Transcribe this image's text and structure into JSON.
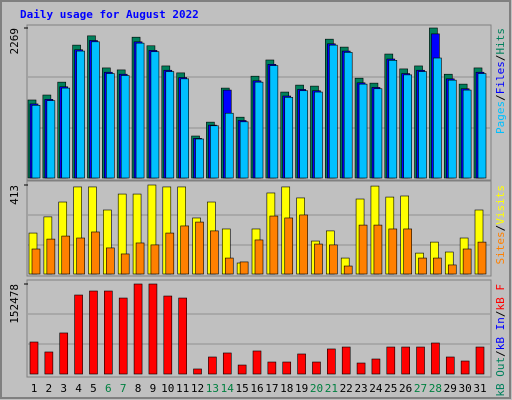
{
  "chart_data": [
    {
      "type": "bar",
      "title": "Daily usage for August 2022",
      "ylim": [
        0,
        2269
      ],
      "yticks": [
        2269
      ],
      "legend_separator": "/",
      "series": [
        {
          "name": "Hits",
          "color": "#00805c",
          "values": [
            1180,
            1255,
            1450,
            2010,
            2150,
            1665,
            1635,
            2130,
            2000,
            1695,
            1590,
            635,
            845,
            1360,
            920,
            1540,
            1785,
            1300,
            1405,
            1390,
            2100,
            1980,
            1510,
            1435,
            1875,
            1650,
            1695,
            2269,
            1570,
            1420,
            1665
          ]
        },
        {
          "name": "Files",
          "color": "#0000ff",
          "values": [
            1120,
            1190,
            1380,
            1940,
            2080,
            1600,
            1570,
            2060,
            1930,
            1630,
            1520,
            600,
            800,
            1330,
            870,
            1470,
            1720,
            1240,
            1340,
            1320,
            2030,
            1920,
            1440,
            1370,
            1800,
            1580,
            1630,
            2180,
            1500,
            1350,
            1600
          ]
        },
        {
          "name": "Pages",
          "color": "#00c0ff",
          "values": [
            1100,
            1170,
            1360,
            1920,
            2060,
            1580,
            1550,
            2040,
            1910,
            1610,
            1500,
            590,
            790,
            980,
            850,
            1450,
            1700,
            1220,
            1320,
            1300,
            2010,
            1900,
            1420,
            1350,
            1780,
            1560,
            1610,
            1815,
            1480,
            1330,
            1580
          ]
        }
      ]
    },
    {
      "type": "bar",
      "ylim": [
        0,
        413
      ],
      "yticks": [
        413
      ],
      "legend_separator": "/",
      "series": [
        {
          "name": "Visits",
          "color": "#ffff00",
          "values": [
            190,
            265,
            334,
            404,
            404,
            297,
            371,
            371,
            413,
            404,
            404,
            260,
            334,
            209,
            51,
            209,
            376,
            404,
            353,
            153,
            200,
            74,
            348,
            408,
            357,
            362,
            97,
            148,
            102,
            167,
            297
          ]
        },
        {
          "name": "Sites",
          "color": "#ff8000",
          "values": [
            116,
            162,
            176,
            167,
            195,
            121,
            93,
            144,
            135,
            190,
            223,
            241,
            200,
            74,
            56,
            158,
            269,
            260,
            274,
            139,
            135,
            37,
            227,
            227,
            209,
            209,
            74,
            74,
            42,
            116,
            148
          ]
        }
      ]
    },
    {
      "type": "bar",
      "ylim": [
        0,
        152478
      ],
      "yticks": [
        152478
      ],
      "legend_separator": "/",
      "categories": [
        "1",
        "2",
        "3",
        "4",
        "5",
        "6",
        "7",
        "8",
        "9",
        "10",
        "11",
        "12",
        "13",
        "14",
        "15",
        "16",
        "17",
        "18",
        "19",
        "20",
        "21",
        "22",
        "23",
        "24",
        "25",
        "26",
        "27",
        "28",
        "29",
        "30",
        "31"
      ],
      "weekend_color": "#008040",
      "weekends": [
        6,
        7,
        13,
        14,
        20,
        21,
        27,
        28
      ],
      "series": [
        {
          "name": "kB F",
          "color": "#ff0000",
          "values": [
            54200,
            37300,
            69500,
            133800,
            140600,
            140600,
            128700,
            152478,
            152478,
            132100,
            128700,
            8500,
            28800,
            35600,
            15200,
            39000,
            20300,
            20300,
            33900,
            20300,
            42400,
            45700,
            18600,
            25400,
            45700,
            45700,
            45700,
            52500,
            28800,
            22000,
            45700
          ]
        },
        {
          "name": "kB In",
          "color": "#0000ff"
        },
        {
          "name": "kB Out",
          "color": "#00805c"
        }
      ]
    }
  ]
}
